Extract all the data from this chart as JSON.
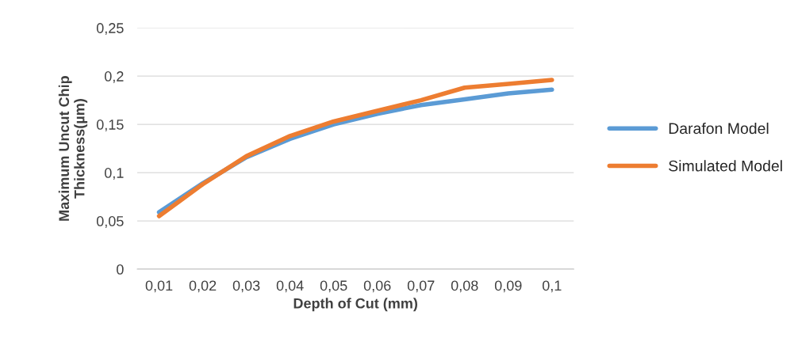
{
  "chart_data": {
    "type": "line",
    "xlabel": "Depth of Cut (mm)",
    "ylabel": "Maximum Uncut Chip\nThickness(µm)",
    "categories": [
      "0,01",
      "0,02",
      "0,03",
      "0,04",
      "0,05",
      "0,06",
      "0,07",
      "0,08",
      "0,09",
      "0,1"
    ],
    "series": [
      {
        "name": "Darafon Model",
        "color": "#5b9bd5",
        "values": [
          0.059,
          0.089,
          0.116,
          0.135,
          0.15,
          0.161,
          0.17,
          0.176,
          0.182,
          0.186
        ]
      },
      {
        "name": "Simulated Model",
        "color": "#ed7d31",
        "values": [
          0.055,
          0.088,
          0.117,
          0.138,
          0.153,
          0.164,
          0.175,
          0.188,
          0.192,
          0.196
        ]
      }
    ],
    "ylim": [
      0,
      0.25
    ],
    "yticks": [
      {
        "value": 0,
        "label": "0"
      },
      {
        "value": 0.05,
        "label": "0,05"
      },
      {
        "value": 0.1,
        "label": "0,1"
      },
      {
        "value": 0.15,
        "label": "0,15"
      },
      {
        "value": 0.2,
        "label": "0,2"
      },
      {
        "value": 0.25,
        "label": "0,25"
      }
    ],
    "grid": "y",
    "legend": "right",
    "marker": "none",
    "line_style": "solid"
  }
}
